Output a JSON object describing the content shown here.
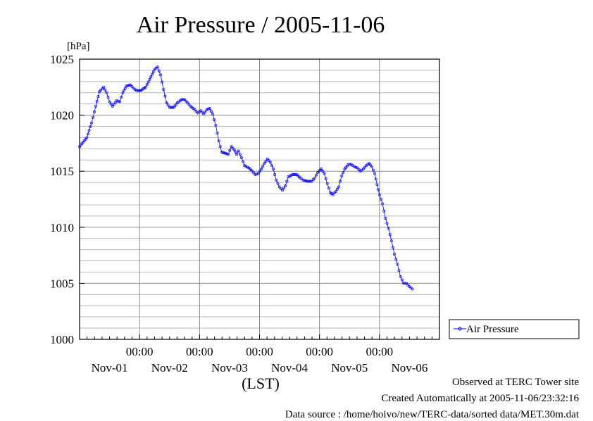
{
  "chart_data": {
    "type": "line",
    "title": "Air Pressure / 2005-11-06",
    "ylabel": "[hPa]",
    "xlabel": "(LST)",
    "ylim": [
      1000,
      1025
    ],
    "yticks": [
      1000,
      1005,
      1010,
      1015,
      1020,
      1025
    ],
    "x_range_days": [
      0,
      6
    ],
    "x_ticks": [
      {
        "day": 1,
        "time": "00:00",
        "date": "Nov-01"
      },
      {
        "day": 2,
        "time": "00:00",
        "date": "Nov-02"
      },
      {
        "day": 3,
        "time": "00:00",
        "date": "Nov-03"
      },
      {
        "day": 4,
        "time": "00:00",
        "date": "Nov-04"
      },
      {
        "day": 5,
        "time": "00:00",
        "date": "Nov-05"
      }
    ],
    "x_end_label": "Nov-06",
    "grid": true,
    "legend_position": "right",
    "series": [
      {
        "name": "Air Pressure",
        "color": "#0000ff",
        "marker": "circle",
        "points": [
          [
            0.0,
            1017.2
          ],
          [
            0.12,
            1018.0
          ],
          [
            0.2,
            1019.3
          ],
          [
            0.27,
            1020.8
          ],
          [
            0.33,
            1022.1
          ],
          [
            0.4,
            1022.5
          ],
          [
            0.45,
            1022.0
          ],
          [
            0.5,
            1021.2
          ],
          [
            0.55,
            1020.8
          ],
          [
            0.62,
            1021.3
          ],
          [
            0.67,
            1021.2
          ],
          [
            0.72,
            1022.0
          ],
          [
            0.78,
            1022.6
          ],
          [
            0.85,
            1022.7
          ],
          [
            0.9,
            1022.4
          ],
          [
            0.95,
            1022.2
          ],
          [
            1.02,
            1022.2
          ],
          [
            1.1,
            1022.5
          ],
          [
            1.17,
            1023.2
          ],
          [
            1.25,
            1024.1
          ],
          [
            1.3,
            1024.3
          ],
          [
            1.35,
            1023.6
          ],
          [
            1.4,
            1022.3
          ],
          [
            1.45,
            1021.1
          ],
          [
            1.5,
            1020.7
          ],
          [
            1.57,
            1020.7
          ],
          [
            1.63,
            1021.1
          ],
          [
            1.7,
            1021.4
          ],
          [
            1.75,
            1021.4
          ],
          [
            1.8,
            1021.1
          ],
          [
            1.85,
            1020.8
          ],
          [
            1.92,
            1020.5
          ],
          [
            1.97,
            1020.2
          ],
          [
            2.02,
            1020.4
          ],
          [
            2.07,
            1020.1
          ],
          [
            2.12,
            1020.5
          ],
          [
            2.17,
            1020.6
          ],
          [
            2.22,
            1020.1
          ],
          [
            2.27,
            1019.1
          ],
          [
            2.32,
            1017.7
          ],
          [
            2.37,
            1016.7
          ],
          [
            2.43,
            1016.6
          ],
          [
            2.48,
            1016.5
          ],
          [
            2.53,
            1017.2
          ],
          [
            2.58,
            1016.9
          ],
          [
            2.62,
            1016.5
          ],
          [
            2.65,
            1016.8
          ],
          [
            2.7,
            1016.2
          ],
          [
            2.75,
            1015.5
          ],
          [
            2.82,
            1015.3
          ],
          [
            2.88,
            1015.0
          ],
          [
            2.93,
            1014.7
          ],
          [
            2.98,
            1014.8
          ],
          [
            3.03,
            1015.2
          ],
          [
            3.08,
            1015.7
          ],
          [
            3.13,
            1016.1
          ],
          [
            3.18,
            1015.8
          ],
          [
            3.23,
            1015.2
          ],
          [
            3.28,
            1014.2
          ],
          [
            3.33,
            1013.6
          ],
          [
            3.38,
            1013.3
          ],
          [
            3.43,
            1013.7
          ],
          [
            3.48,
            1014.5
          ],
          [
            3.55,
            1014.7
          ],
          [
            3.62,
            1014.7
          ],
          [
            3.68,
            1014.4
          ],
          [
            3.73,
            1014.2
          ],
          [
            3.8,
            1014.1
          ],
          [
            3.87,
            1014.1
          ],
          [
            3.92,
            1014.4
          ],
          [
            3.97,
            1014.9
          ],
          [
            4.03,
            1015.2
          ],
          [
            4.08,
            1014.8
          ],
          [
            4.13,
            1013.9
          ],
          [
            4.18,
            1013.1
          ],
          [
            4.22,
            1012.9
          ],
          [
            4.27,
            1013.2
          ],
          [
            4.32,
            1013.6
          ],
          [
            4.37,
            1014.6
          ],
          [
            4.42,
            1015.2
          ],
          [
            4.48,
            1015.6
          ],
          [
            4.53,
            1015.6
          ],
          [
            4.58,
            1015.4
          ],
          [
            4.63,
            1015.3
          ],
          [
            4.68,
            1015.0
          ],
          [
            4.73,
            1015.2
          ],
          [
            4.78,
            1015.5
          ],
          [
            4.83,
            1015.7
          ],
          [
            4.87,
            1015.4
          ],
          [
            4.92,
            1014.8
          ],
          [
            4.96,
            1013.8
          ],
          [
            5.0,
            1012.9
          ],
          [
            5.05,
            1012.1
          ],
          [
            5.1,
            1010.8
          ],
          [
            5.15,
            1009.9
          ],
          [
            5.2,
            1008.8
          ],
          [
            5.25,
            1007.6
          ],
          [
            5.3,
            1006.7
          ],
          [
            5.35,
            1005.6
          ],
          [
            5.4,
            1005.0
          ],
          [
            5.45,
            1005.0
          ],
          [
            5.5,
            1004.7
          ],
          [
            5.55,
            1004.5
          ]
        ]
      }
    ]
  },
  "footer": {
    "observed": "Observed at TERC Tower site",
    "created": "Created Automatically at 2005-11-06/23:32:16",
    "source": "Data source : /home/hoivo/new/TERC-data/sorted  data/MET.30m.dat"
  }
}
